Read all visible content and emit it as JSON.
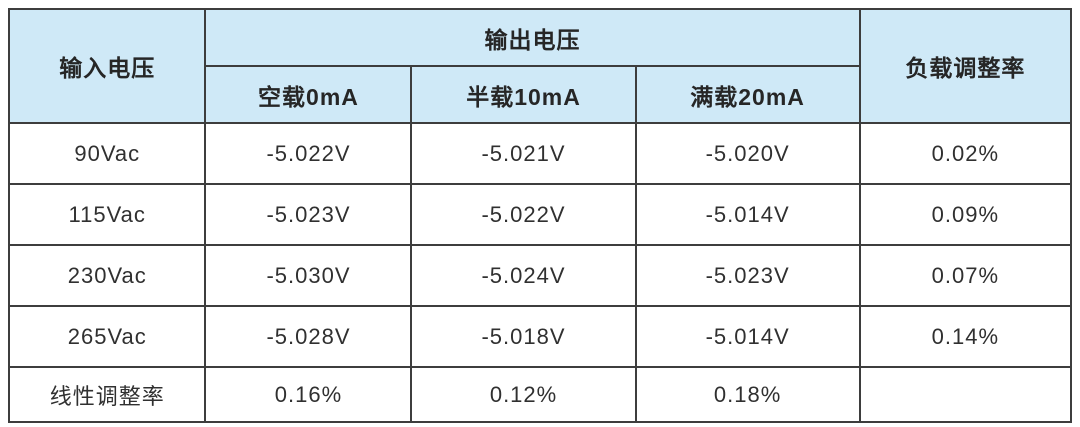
{
  "table": {
    "header": {
      "input_voltage": "输入电压",
      "output_voltage": "输出电压",
      "load_regulation": "负载调整率",
      "load_conditions": [
        "空载0mA",
        "半载10mA",
        "满载20mA"
      ]
    },
    "rows": [
      {
        "cells": [
          "90Vac",
          "-5.022V",
          "-5.021V",
          "-5.020V",
          "0.02%"
        ]
      },
      {
        "cells": [
          "115Vac",
          "-5.023V",
          "-5.022V",
          "-5.014V",
          "0.09%"
        ]
      },
      {
        "cells": [
          "230Vac",
          "-5.030V",
          "-5.024V",
          "-5.023V",
          "0.07%"
        ]
      },
      {
        "cells": [
          "265Vac",
          "-5.028V",
          "-5.018V",
          "-5.014V",
          "0.14%"
        ]
      },
      {
        "cells": [
          "线性调整率",
          "0.16%",
          "0.12%",
          "0.18%",
          ""
        ]
      }
    ]
  },
  "colors": {
    "header_background": "#cfe9f7",
    "border": "#3d3d3d",
    "text": "#303030",
    "page_background": "#ffffff"
  }
}
